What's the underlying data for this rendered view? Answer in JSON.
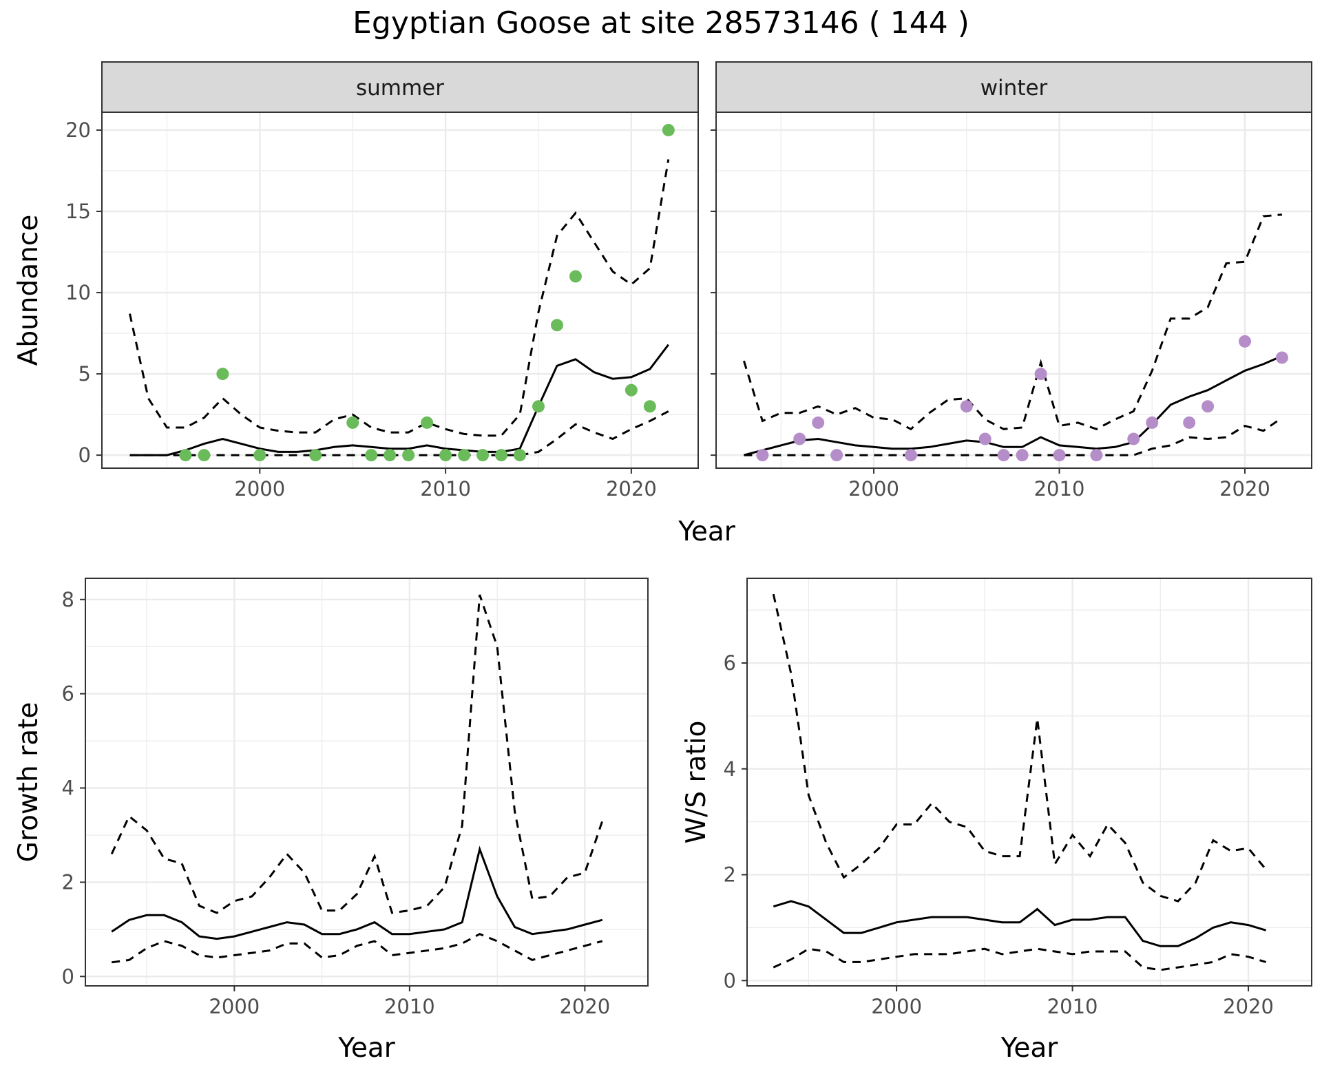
{
  "figure": {
    "title": "Egyptian Goose at site 28573146 ( 144 )"
  },
  "colors": {
    "summer_points": "#6ABB5A",
    "winter_points": "#B58DC9",
    "line": "#000000",
    "strip_bg": "#D9D9D9",
    "grid": "#EBEBEB"
  },
  "chart_data": [
    {
      "id": "abundance",
      "type": "line",
      "facets": [
        "summer",
        "winter"
      ],
      "xlabel": "Year",
      "ylabel": "Abundance",
      "xlim": [
        1991.5,
        2023.6
      ],
      "ylim": [
        -0.8,
        21.1
      ],
      "xticks": [
        2000,
        2010,
        2020
      ],
      "yticks": [
        0,
        5,
        10,
        15,
        20
      ],
      "grid": true,
      "panels": [
        {
          "facet": "summer",
          "x": [
            1993,
            1994,
            1995,
            1996,
            1997,
            1998,
            1999,
            2000,
            2001,
            2002,
            2003,
            2004,
            2005,
            2006,
            2007,
            2008,
            2009,
            2010,
            2011,
            2012,
            2013,
            2014,
            2015,
            2016,
            2017,
            2018,
            2019,
            2020,
            2021,
            2022
          ],
          "mean": [
            0,
            0,
            0,
            0.3,
            0.7,
            1.0,
            0.7,
            0.4,
            0.2,
            0.2,
            0.3,
            0.5,
            0.6,
            0.5,
            0.4,
            0.4,
            0.6,
            0.4,
            0.3,
            0.2,
            0.2,
            0.4,
            3.0,
            5.5,
            5.9,
            5.1,
            4.7,
            4.8,
            5.3,
            6.8
          ],
          "upper": [
            8.7,
            3.5,
            1.7,
            1.7,
            2.3,
            3.5,
            2.5,
            1.7,
            1.5,
            1.4,
            1.4,
            2.2,
            2.5,
            1.7,
            1.4,
            1.4,
            2.0,
            1.6,
            1.3,
            1.2,
            1.2,
            2.5,
            8.8,
            13.5,
            14.9,
            13.1,
            11.3,
            10.5,
            11.5,
            18.2
          ],
          "lower": [
            0,
            0,
            0,
            0,
            0,
            0,
            0,
            0,
            0,
            0,
            0,
            0,
            0,
            0,
            0,
            0,
            0,
            0,
            0,
            0,
            0,
            0,
            0.2,
            1.0,
            1.9,
            1.4,
            1.0,
            1.6,
            2.1,
            2.7
          ],
          "points": {
            "x": [
              1996,
              1997,
              1998,
              2000,
              2003,
              2005,
              2006,
              2007,
              2008,
              2009,
              2010,
              2011,
              2012,
              2013,
              2014,
              2015,
              2016,
              2017,
              2020,
              2021,
              2022
            ],
            "y": [
              0,
              0,
              5,
              0,
              0,
              2,
              0,
              0,
              0,
              2,
              0,
              0,
              0,
              0,
              0,
              3,
              8,
              11,
              4,
              3,
              20
            ]
          }
        },
        {
          "facet": "winter",
          "x": [
            1993,
            1994,
            1995,
            1996,
            1997,
            1998,
            1999,
            2000,
            2001,
            2002,
            2003,
            2004,
            2005,
            2006,
            2007,
            2008,
            2009,
            2010,
            2011,
            2012,
            2013,
            2014,
            2015,
            2016,
            2017,
            2018,
            2019,
            2020,
            2021,
            2022
          ],
          "mean": [
            0,
            0.3,
            0.6,
            0.9,
            1.0,
            0.8,
            0.6,
            0.5,
            0.4,
            0.4,
            0.5,
            0.7,
            0.9,
            0.8,
            0.5,
            0.5,
            1.1,
            0.6,
            0.5,
            0.4,
            0.5,
            0.8,
            1.9,
            3.1,
            3.6,
            4.0,
            4.6,
            5.2,
            5.6,
            6.1
          ],
          "upper": [
            5.8,
            2.1,
            2.6,
            2.6,
            3.0,
            2.5,
            2.9,
            2.3,
            2.2,
            1.6,
            2.6,
            3.4,
            3.5,
            2.2,
            1.6,
            1.7,
            5.7,
            1.8,
            2.0,
            1.6,
            2.2,
            2.7,
            5.2,
            8.4,
            8.4,
            9.1,
            11.8,
            11.9,
            14.7,
            14.8
          ],
          "lower": [
            0,
            0,
            0,
            0,
            0,
            0,
            0,
            0,
            0,
            0,
            0,
            0,
            0,
            0,
            0,
            0,
            0,
            0,
            0,
            0,
            0,
            0,
            0.4,
            0.6,
            1.1,
            1.0,
            1.1,
            1.8,
            1.5,
            2.3
          ],
          "points": {
            "x": [
              1994,
              1996,
              1997,
              1998,
              2002,
              2005,
              2006,
              2007,
              2008,
              2009,
              2010,
              2012,
              2014,
              2015,
              2017,
              2018,
              2020,
              2022
            ],
            "y": [
              0,
              1,
              2,
              0,
              0,
              3,
              1,
              0,
              0,
              5,
              0,
              0,
              1,
              2,
              2,
              3,
              7,
              6
            ]
          }
        }
      ]
    },
    {
      "id": "growth",
      "type": "line",
      "xlabel": "Year",
      "ylabel": "Growth rate",
      "xlim": [
        1991.5,
        2023.6
      ],
      "ylim": [
        -0.2,
        8.45
      ],
      "xticks": [
        2000,
        2010,
        2020
      ],
      "yticks": [
        0,
        2,
        4,
        6,
        8
      ],
      "grid": true,
      "x": [
        1993,
        1994,
        1995,
        1996,
        1997,
        1998,
        1999,
        2000,
        2001,
        2002,
        2003,
        2004,
        2005,
        2006,
        2007,
        2008,
        2009,
        2010,
        2011,
        2012,
        2013,
        2014,
        2015,
        2016,
        2017,
        2018,
        2019,
        2020,
        2021
      ],
      "mean": [
        0.95,
        1.2,
        1.3,
        1.3,
        1.15,
        0.85,
        0.8,
        0.85,
        0.95,
        1.05,
        1.15,
        1.1,
        0.9,
        0.9,
        1.0,
        1.15,
        0.9,
        0.9,
        0.95,
        1.0,
        1.15,
        2.7,
        1.7,
        1.05,
        0.9,
        0.95,
        1.0,
        1.1,
        1.2
      ],
      "upper": [
        2.6,
        3.4,
        3.1,
        2.5,
        2.4,
        1.5,
        1.35,
        1.6,
        1.7,
        2.1,
        2.6,
        2.2,
        1.4,
        1.4,
        1.75,
        2.55,
        1.35,
        1.4,
        1.5,
        1.9,
        3.2,
        8.1,
        7.0,
        3.5,
        1.65,
        1.7,
        2.1,
        2.2,
        3.3
      ],
      "lower": [
        0.3,
        0.35,
        0.6,
        0.75,
        0.65,
        0.45,
        0.4,
        0.45,
        0.5,
        0.55,
        0.7,
        0.7,
        0.4,
        0.45,
        0.65,
        0.75,
        0.45,
        0.5,
        0.55,
        0.6,
        0.7,
        0.9,
        0.75,
        0.55,
        0.35,
        0.45,
        0.55,
        0.65,
        0.75
      ]
    },
    {
      "id": "ratio",
      "type": "line",
      "xlabel": "Year",
      "ylabel": "W/S ratio",
      "xlim": [
        1991.5,
        2023.6
      ],
      "ylim": [
        -0.1,
        7.6
      ],
      "xticks": [
        2000,
        2010,
        2020
      ],
      "yticks": [
        0,
        2,
        4,
        6
      ],
      "grid": true,
      "x": [
        1993,
        1994,
        1995,
        1996,
        1997,
        1998,
        1999,
        2000,
        2001,
        2002,
        2003,
        2004,
        2005,
        2006,
        2007,
        2008,
        2009,
        2010,
        2011,
        2012,
        2013,
        2014,
        2015,
        2016,
        2017,
        2018,
        2019,
        2020,
        2021
      ],
      "mean": [
        1.4,
        1.5,
        1.4,
        1.15,
        0.9,
        0.9,
        1.0,
        1.1,
        1.15,
        1.2,
        1.2,
        1.2,
        1.15,
        1.1,
        1.1,
        1.35,
        1.05,
        1.15,
        1.15,
        1.2,
        1.2,
        0.75,
        0.65,
        0.65,
        0.8,
        1.0,
        1.1,
        1.05,
        0.95
      ],
      "upper": [
        7.3,
        5.8,
        3.5,
        2.6,
        1.95,
        2.2,
        2.5,
        2.95,
        2.95,
        3.35,
        3.0,
        2.9,
        2.45,
        2.35,
        2.35,
        4.95,
        2.2,
        2.75,
        2.35,
        2.95,
        2.6,
        1.85,
        1.6,
        1.5,
        1.85,
        2.65,
        2.45,
        2.5,
        2.1
      ],
      "lower": [
        0.25,
        0.4,
        0.6,
        0.55,
        0.35,
        0.35,
        0.4,
        0.45,
        0.5,
        0.5,
        0.5,
        0.55,
        0.6,
        0.5,
        0.55,
        0.6,
        0.55,
        0.5,
        0.55,
        0.55,
        0.55,
        0.25,
        0.2,
        0.25,
        0.3,
        0.35,
        0.5,
        0.45,
        0.35
      ]
    }
  ]
}
